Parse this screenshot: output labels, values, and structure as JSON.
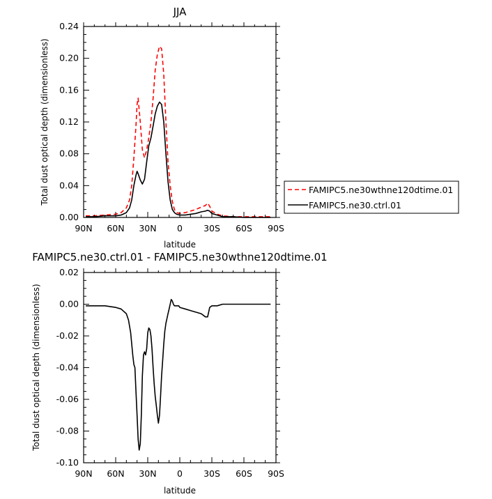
{
  "chart_data": [
    {
      "type": "line",
      "title": "JJA",
      "xlabel": "latitude",
      "ylabel": "Total dust optical depth (dimensionless)",
      "xlim": [
        90,
        -90
      ],
      "ylim": [
        0,
        0.24
      ],
      "x_ticks": [
        {
          "value": 90,
          "label": "90N"
        },
        {
          "value": 60,
          "label": "60N"
        },
        {
          "value": 30,
          "label": "30N"
        },
        {
          "value": 0,
          "label": "0"
        },
        {
          "value": -30,
          "label": "30S"
        },
        {
          "value": -60,
          "label": "60S"
        },
        {
          "value": -90,
          "label": "90S"
        }
      ],
      "y_ticks": [
        {
          "value": 0,
          "label": "0.00"
        },
        {
          "value": 0.04,
          "label": "0.04"
        },
        {
          "value": 0.08,
          "label": "0.08"
        },
        {
          "value": 0.12,
          "label": "0.12"
        },
        {
          "value": 0.16,
          "label": "0.16"
        },
        {
          "value": 0.2,
          "label": "0.20"
        },
        {
          "value": 0.24,
          "label": "0.24"
        }
      ],
      "grid": false,
      "legend": "right",
      "series": [
        {
          "name": "FAMIPC5.ne30wthne120dtime.01",
          "color": "#ff0000",
          "dash": "dashed",
          "x": [
            88,
            80,
            70,
            60,
            55,
            50,
            47,
            45,
            43,
            41,
            40,
            39,
            37,
            35,
            33,
            31,
            29,
            27,
            25,
            23,
            21,
            19,
            17,
            15,
            13,
            11,
            9,
            7,
            5,
            3,
            0,
            -5,
            -10,
            -15,
            -20,
            -24,
            -26,
            -28,
            -30,
            -35,
            -40,
            -50,
            -60,
            -70,
            -80,
            -85
          ],
          "values": [
            0.002,
            0.002,
            0.003,
            0.004,
            0.006,
            0.012,
            0.022,
            0.04,
            0.075,
            0.115,
            0.142,
            0.15,
            0.12,
            0.085,
            0.075,
            0.085,
            0.1,
            0.12,
            0.15,
            0.185,
            0.205,
            0.215,
            0.212,
            0.18,
            0.12,
            0.07,
            0.04,
            0.02,
            0.01,
            0.006,
            0.005,
            0.006,
            0.008,
            0.01,
            0.013,
            0.015,
            0.018,
            0.014,
            0.008,
            0.004,
            0.002,
            0.001,
            0.001,
            0.001,
            0.001,
            0.001
          ]
        },
        {
          "name": "FAMIPC5.ne30.ctrl.01",
          "color": "#000000",
          "dash": "solid",
          "x": [
            88,
            80,
            70,
            60,
            55,
            50,
            47,
            45,
            43,
            41,
            40,
            39,
            37,
            35,
            33,
            31,
            29,
            27,
            25,
            23,
            21,
            19,
            17,
            15,
            13,
            11,
            9,
            7,
            5,
            3,
            0,
            -5,
            -10,
            -15,
            -20,
            -24,
            -26,
            -28,
            -30,
            -35,
            -40,
            -50,
            -60,
            -70,
            -80,
            -85
          ],
          "values": [
            0.001,
            0.001,
            0.002,
            0.002,
            0.003,
            0.006,
            0.012,
            0.022,
            0.04,
            0.053,
            0.058,
            0.055,
            0.047,
            0.042,
            0.048,
            0.07,
            0.09,
            0.1,
            0.115,
            0.13,
            0.14,
            0.145,
            0.142,
            0.12,
            0.08,
            0.045,
            0.022,
            0.01,
            0.006,
            0.004,
            0.003,
            0.003,
            0.004,
            0.005,
            0.007,
            0.008,
            0.009,
            0.008,
            0.005,
            0.003,
            0.001,
            0.001,
            0,
            0,
            0,
            0
          ]
        }
      ]
    },
    {
      "type": "line",
      "title": "FAMIPC5.ne30.ctrl.01 - FAMIPC5.ne30wthne120dtime.01",
      "xlabel": "latitude",
      "ylabel": "Total dust optical depth (dimensionless)",
      "xlim": [
        90,
        -90
      ],
      "ylim": [
        -0.1,
        0.02
      ],
      "x_ticks": [
        {
          "value": 90,
          "label": "90N"
        },
        {
          "value": 60,
          "label": "60N"
        },
        {
          "value": 30,
          "label": "30N"
        },
        {
          "value": 0,
          "label": "0"
        },
        {
          "value": -30,
          "label": "30S"
        },
        {
          "value": -60,
          "label": "60S"
        },
        {
          "value": -90,
          "label": "90S"
        }
      ],
      "y_ticks": [
        {
          "value": 0.02,
          "label": "0.02"
        },
        {
          "value": 0,
          "label": "0.00"
        },
        {
          "value": -0.02,
          "label": "-0.02"
        },
        {
          "value": -0.04,
          "label": "-0.04"
        },
        {
          "value": -0.06,
          "label": "-0.06"
        },
        {
          "value": -0.08,
          "label": "-0.08"
        },
        {
          "value": -0.1,
          "label": "-0.10"
        }
      ],
      "grid": false,
      "series": [
        {
          "color": "#000000",
          "dash": "solid",
          "x": [
            88,
            80,
            70,
            60,
            55,
            50,
            48,
            46,
            44,
            43,
            42,
            41,
            40,
            39,
            38,
            37,
            36,
            35,
            34,
            33,
            32,
            31,
            30,
            29,
            28,
            27,
            26,
            25,
            24,
            23,
            22,
            21,
            20,
            19,
            18,
            17,
            16,
            15,
            14,
            13,
            12,
            11,
            10,
            9,
            8,
            7,
            6,
            5,
            4,
            3,
            1,
            0,
            -5,
            -10,
            -15,
            -20,
            -24,
            -26,
            -27,
            -28,
            -30,
            -35,
            -40,
            -50,
            -60,
            -70,
            -80,
            -85
          ],
          "values": [
            -0.001,
            -0.001,
            -0.001,
            -0.002,
            -0.003,
            -0.006,
            -0.01,
            -0.018,
            -0.032,
            -0.038,
            -0.04,
            -0.055,
            -0.07,
            -0.085,
            -0.092,
            -0.088,
            -0.07,
            -0.045,
            -0.032,
            -0.03,
            -0.032,
            -0.028,
            -0.018,
            -0.015,
            -0.016,
            -0.02,
            -0.028,
            -0.04,
            -0.05,
            -0.058,
            -0.064,
            -0.07,
            -0.075,
            -0.07,
            -0.058,
            -0.045,
            -0.035,
            -0.025,
            -0.017,
            -0.012,
            -0.009,
            -0.006,
            -0.003,
            0,
            0.003,
            0.002,
            0,
            -0.001,
            -0.001,
            -0.001,
            -0.001,
            -0.002,
            -0.003,
            -0.004,
            -0.005,
            -0.006,
            -0.008,
            -0.008,
            -0.005,
            -0.002,
            -0.001,
            -0.001,
            0,
            0,
            0,
            0,
            0,
            0
          ]
        }
      ]
    }
  ]
}
